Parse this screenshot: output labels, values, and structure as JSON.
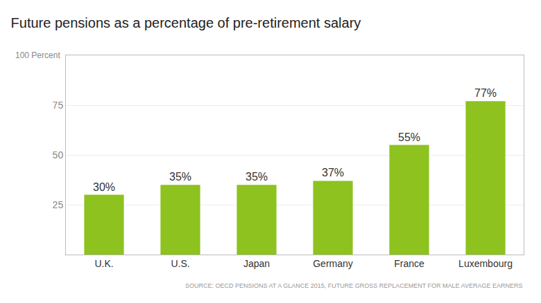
{
  "chart_data": {
    "type": "bar",
    "title": "Future pensions as a percentage of pre-retirement salary",
    "ylabel": "100 Percent",
    "categories": [
      "U.K.",
      "U.S.",
      "Japan",
      "Germany",
      "France",
      "Luxembourg"
    ],
    "values": [
      30,
      35,
      35,
      37,
      55,
      77
    ],
    "value_labels": [
      "30%",
      "35%",
      "35%",
      "37%",
      "55%",
      "77%"
    ],
    "data_labels": true,
    "color": "#8dc21f",
    "ylim": [
      0,
      100
    ],
    "yticks": [
      25,
      50,
      75
    ],
    "grid": true,
    "annotations": [
      "SOURCE: OECD PENSIONS AT A GLANCE 2015, FUTURE GROSS REPLACEMENT FOR MALE AVERAGE EARNERS"
    ]
  }
}
